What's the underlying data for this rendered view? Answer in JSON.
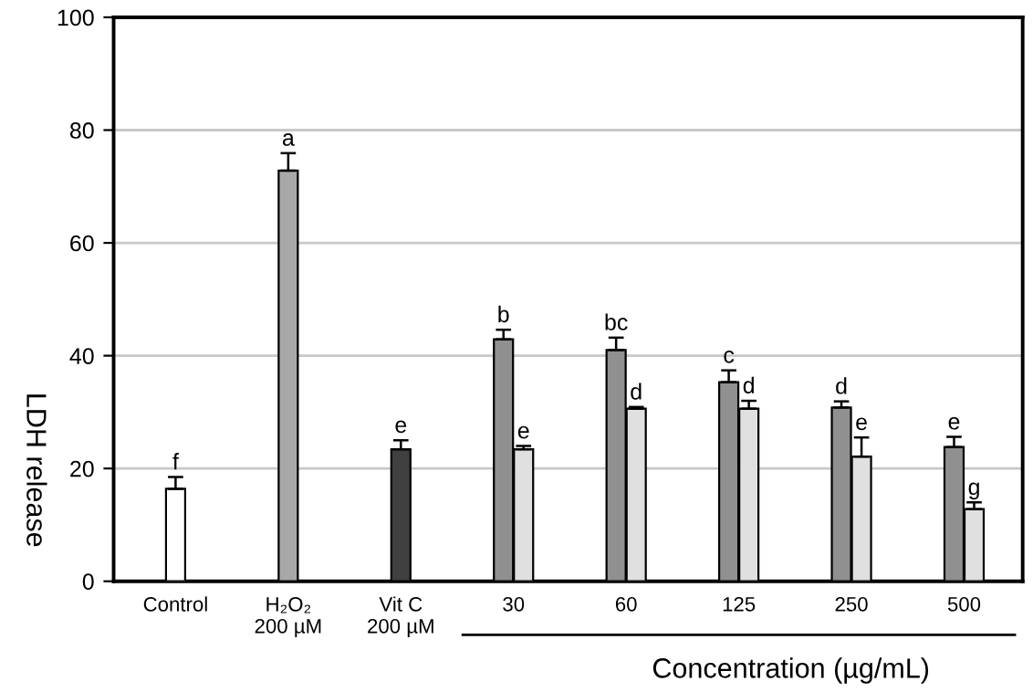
{
  "chart_data": {
    "type": "bar",
    "categories": [
      "Control",
      "H₂O₂\n200 µM",
      "Vit C\n200 µM",
      "30",
      "60",
      "125",
      "250",
      "500"
    ],
    "xlabel": "Concentration (µg/mL)",
    "ylabel": "LDH release",
    "ylim": [
      0,
      100
    ],
    "yticks": [
      0,
      20,
      40,
      60,
      80,
      100
    ],
    "grid": "y",
    "legend": false,
    "series": [
      {
        "colors": [
          "#ffffff",
          "#a8a8a8",
          "#404040",
          "#909090",
          "#909090",
          "#909090",
          "#909090",
          "#909090"
        ],
        "values": [
          16.4,
          72.8,
          23.4,
          42.9,
          41.0,
          35.3,
          30.8,
          23.8
        ],
        "errors": [
          2.1,
          3.1,
          1.6,
          1.7,
          2.2,
          2.1,
          1.1,
          1.8
        ],
        "value_labels": [
          "f",
          "a",
          "e",
          "b",
          "bc",
          "c",
          "d",
          "e"
        ]
      },
      {
        "colors": [
          null,
          null,
          null,
          "#e0e0e0",
          "#e0e0e0",
          "#e0e0e0",
          "#e0e0e0",
          "#e0e0e0"
        ],
        "values": [
          null,
          null,
          null,
          23.4,
          30.6,
          30.6,
          22.1,
          12.8
        ],
        "errors": [
          null,
          null,
          null,
          0.6,
          0.3,
          1.4,
          3.4,
          1.2
        ],
        "value_labels": [
          null,
          null,
          null,
          "e",
          "d",
          "d",
          "e",
          "g"
        ]
      }
    ]
  }
}
